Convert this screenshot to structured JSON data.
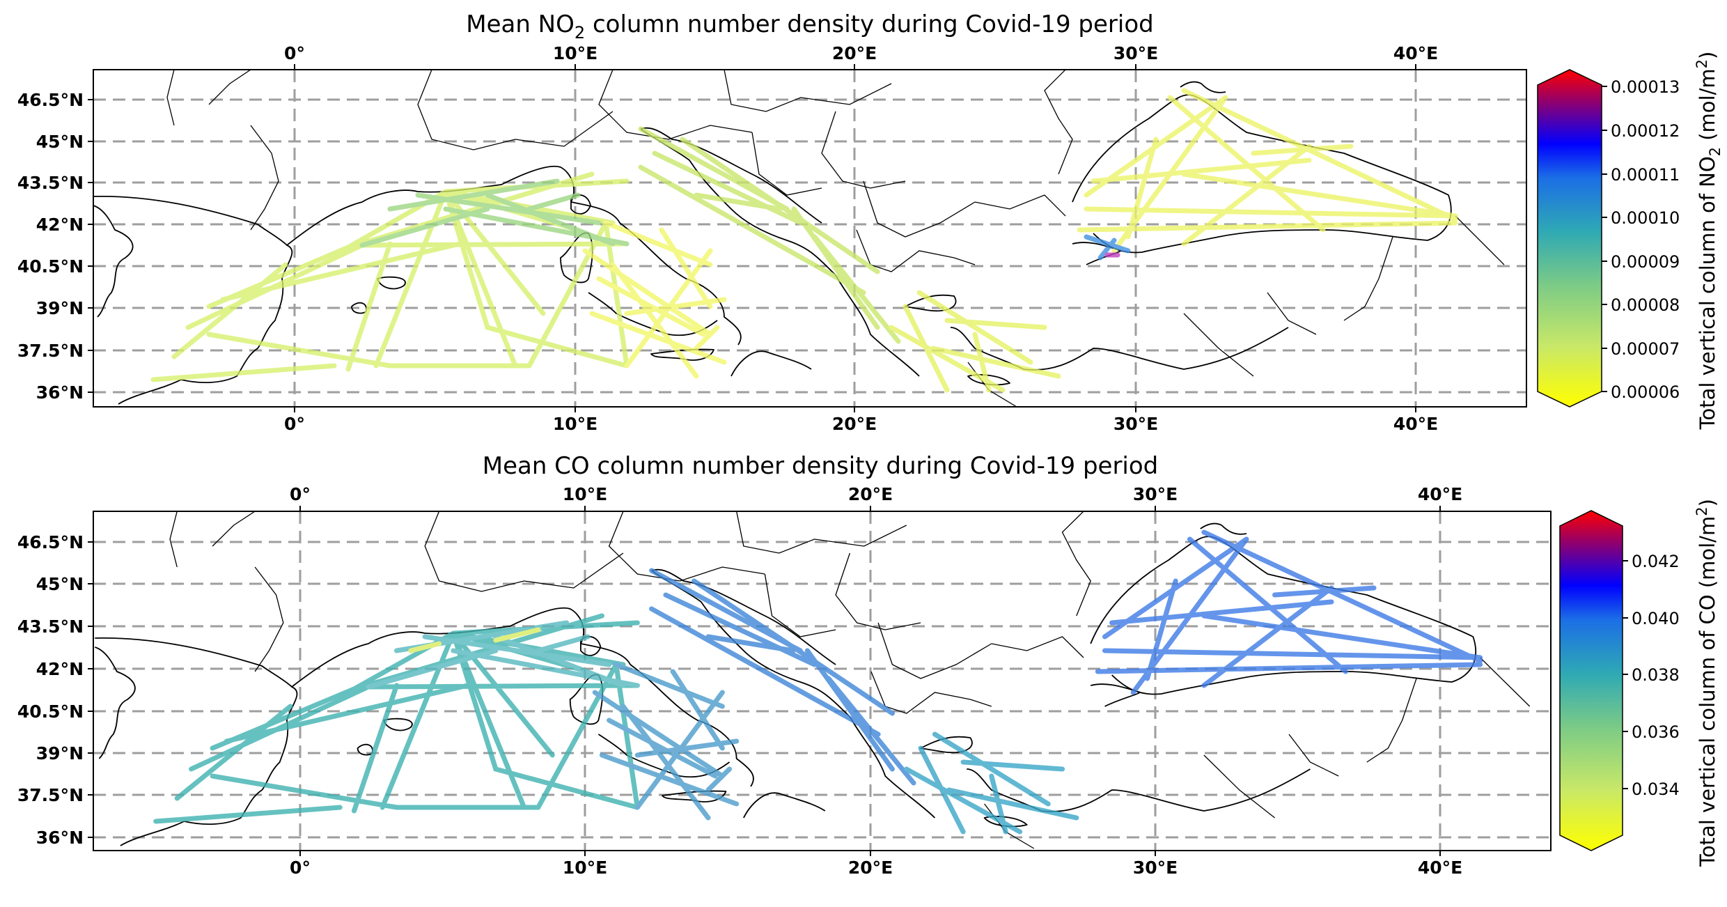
{
  "maps": [
    {
      "id": "no2",
      "title_main": "Mean NO",
      "title_sub": "2",
      "title_rest": " column number density during Covid-19 period",
      "colorbar": {
        "label_main": "Total vertical column of NO",
        "label_sub": "2",
        "label_unit": " (mol/m",
        "label_sup": "2",
        "label_end": ")",
        "ticks": [
          "0.00006",
          "0.00007",
          "0.00008",
          "0.00009",
          "0.00010",
          "0.00011",
          "0.00012",
          "0.00013"
        ],
        "colors_bottom_to_top": [
          "#ffff00",
          "#d4ee60",
          "#8fd37e",
          "#3bb5a6",
          "#1a82d6",
          "#0000ff",
          "#7f007f",
          "#ff0000"
        ]
      }
    },
    {
      "id": "co",
      "title_main": "Mean CO column number density during Covid-19 period",
      "colorbar": {
        "label_main": "Total vertical column of CO (mol/m",
        "label_sup": "2",
        "label_end": ")",
        "ticks": [
          "0.034",
          "0.036",
          "0.038",
          "0.040",
          "0.042"
        ],
        "colors_bottom_to_top": [
          "#ffff00",
          "#d4ee60",
          "#8fd37e",
          "#3bb5a6",
          "#1a82d6",
          "#0000ff",
          "#7f007f",
          "#ff0000"
        ]
      }
    }
  ],
  "lon_ticks": [
    "0°",
    "10°E",
    "20°E",
    "30°E",
    "40°E"
  ],
  "lat_ticks": [
    "36°N",
    "37.5°N",
    "39°N",
    "40.5°N",
    "42°N",
    "43.5°N",
    "45°N",
    "46.5°N"
  ],
  "chart_data": [
    {
      "type": "map_tracks",
      "title": "Mean NO2 column number density during Covid-19 period",
      "colorbar_label": "Total vertical column of NO2 (mol/m2)",
      "colorbar_range": [
        6e-05,
        0.00013
      ],
      "lon_range": [
        -7.2,
        43.5
      ],
      "lat_range": [
        35.5,
        47.5
      ],
      "grid": true
    },
    {
      "type": "map_tracks",
      "title": "Mean CO column number density during Covid-19 period",
      "colorbar_label": "Total vertical column of CO (mol/m2)",
      "colorbar_range": [
        0.032,
        0.0435
      ],
      "lon_range": [
        -7.2,
        43.5
      ],
      "lat_range": [
        35.5,
        47.5
      ],
      "grid": true
    }
  ]
}
